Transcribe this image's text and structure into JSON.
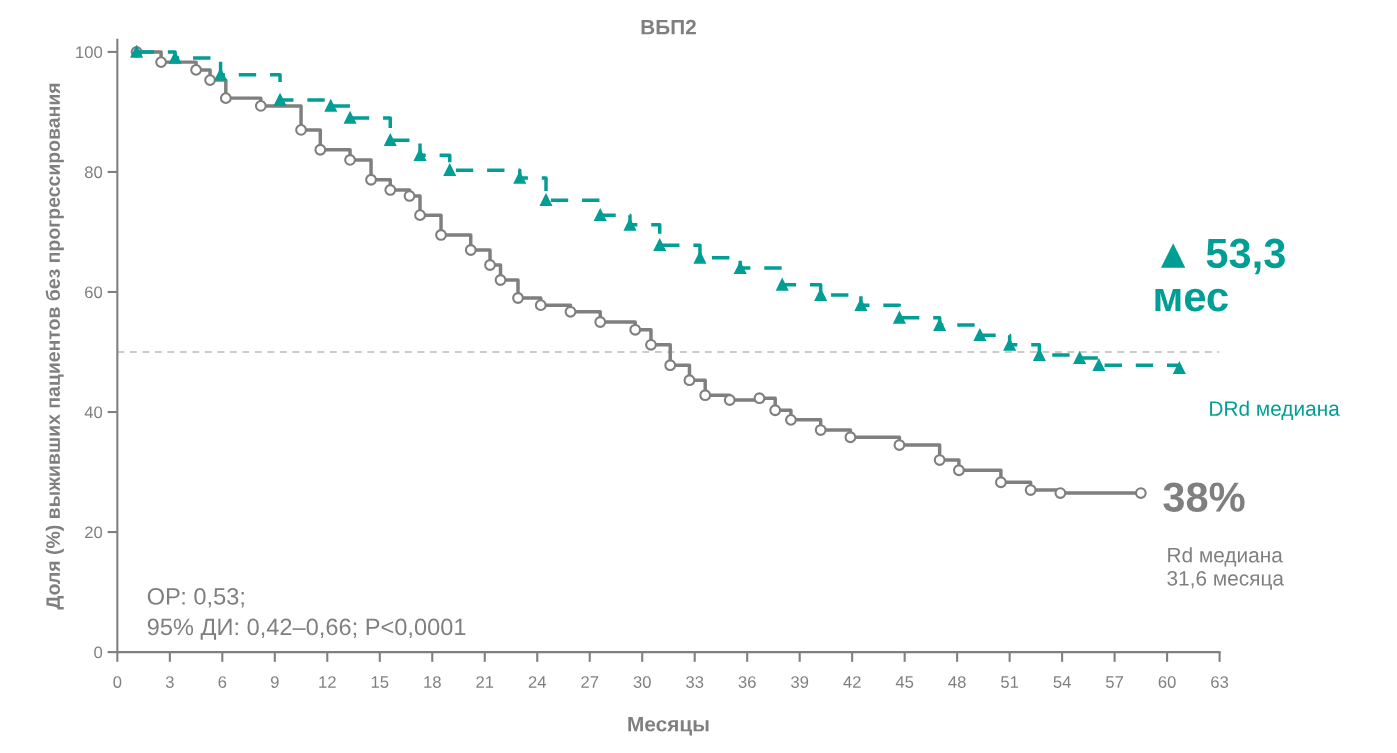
{
  "chart_data": {
    "type": "step",
    "title": "ВБП2",
    "xlabel": "Месяцы",
    "ylabel": "Доля (%) выживших пациентов без прогрессирования",
    "xlim": [
      0,
      63
    ],
    "xticks": [
      0,
      3,
      6,
      9,
      12,
      15,
      18,
      21,
      24,
      27,
      30,
      33,
      36,
      39,
      42,
      45,
      48,
      51,
      54,
      57,
      60,
      63
    ],
    "ylim": [
      0,
      102
    ],
    "yticks": [
      0,
      20,
      40,
      60,
      80,
      100
    ],
    "grid": false,
    "legend": false,
    "series": [
      {
        "color": "#009e94",
        "line_style": "dashed",
        "marker": "triangle",
        "x": [
          1.1,
          3.3,
          5.9,
          9.3,
          12.2,
          13.3,
          15.6,
          17.3,
          19,
          23,
          24.5,
          27.6,
          29.3,
          31,
          33.3,
          35.6,
          38,
          40.2,
          42.5,
          44.7,
          47,
          49.3,
          51,
          52.7,
          55,
          56.1,
          60.7
        ],
        "values": [
          100,
          99,
          96.2,
          92,
          91,
          89,
          85.3,
          82.8,
          80.3,
          79,
          75.3,
          72.8,
          71.2,
          67.8,
          65.7,
          64,
          61.2,
          59.5,
          57.8,
          55.7,
          54.5,
          52.8,
          51.2,
          49.5,
          49,
          47.8,
          47.3
        ]
      },
      {
        "color": "#7f7f7f",
        "line_style": "solid",
        "marker": "circle",
        "x": [
          1.1,
          2.5,
          4.5,
          5.3,
          6.2,
          8.2,
          10.5,
          11.6,
          13.3,
          14.5,
          15.6,
          16.7,
          17.3,
          18.5,
          20.2,
          21.3,
          21.9,
          22.9,
          24.2,
          25.9,
          27.6,
          29.6,
          30.5,
          31.6,
          32.7,
          33.6,
          35,
          36.7,
          37.6,
          38.5,
          40.2,
          41.9,
          44.7,
          47,
          48.1,
          50.5,
          52.2,
          53.9,
          58.5
        ],
        "values": [
          100,
          98.3,
          97,
          95.3,
          92.3,
          91,
          87,
          83.7,
          82,
          78.7,
          77,
          76,
          72.8,
          69.5,
          67,
          64.5,
          62,
          59,
          57.8,
          56.7,
          55,
          53.7,
          51.2,
          47.8,
          45.3,
          42.8,
          42,
          42.3,
          40.3,
          38.7,
          37,
          35.8,
          34.5,
          32,
          30.3,
          28.3,
          27,
          26.5,
          26.5
        ]
      }
    ],
    "ref_lines": [
      {
        "axis": "y",
        "value": 50,
        "color": "#bbbbbb",
        "line_style": "dashed"
      }
    ],
    "annotations": [
      "▲ 53,3\nмес",
      "DRd медиана",
      "38%",
      "Rd медиана\n31,6 месяца",
      "ОР: 0,53;\n95% ДИ: 0,42–0,66; P<0,0001"
    ]
  }
}
